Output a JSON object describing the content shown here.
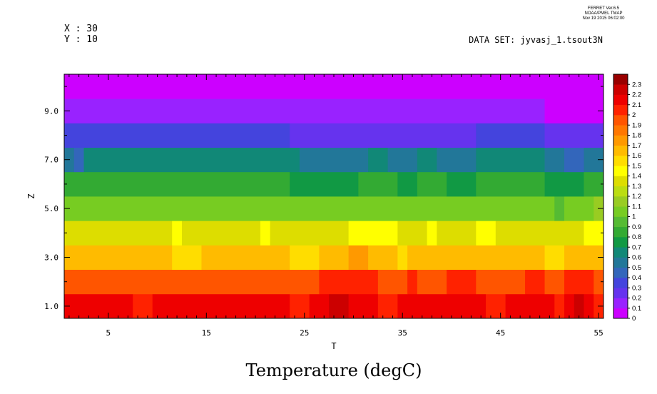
{
  "header": {
    "ferret_lines": [
      "FERRET Ver.6.5",
      "NOAA/PMEL TMAP",
      "Nov 19 2015 06:02:00"
    ],
    "x_label": "X : 30",
    "y_label": "Y : 10",
    "dataset": "DATA SET: jyvasj_1.tsout3N"
  },
  "chart_data": {
    "type": "heatmap",
    "title": "Temperature (degC)",
    "xlabel": "T",
    "ylabel": "Z",
    "xlim": [
      0.5,
      55.5
    ],
    "ylim": [
      0.5,
      10.5
    ],
    "xticks_major": [
      5,
      15,
      25,
      35,
      45,
      55
    ],
    "yticks_major": [
      1.0,
      3.0,
      5.0,
      7.0,
      9.0
    ],
    "ytick_labels": [
      "1.0",
      "3.0",
      "5.0",
      "7.0",
      "9.0"
    ],
    "colorbar": {
      "levels": [
        0,
        0.1,
        0.2,
        0.3,
        0.4,
        0.5,
        0.6,
        0.7,
        0.8,
        0.9,
        1,
        1.1,
        1.2,
        1.3,
        1.4,
        1.5,
        1.6,
        1.7,
        1.8,
        1.9,
        2,
        2.1,
        2.2,
        2.3
      ],
      "labels": [
        "0",
        "0.1",
        "0.2",
        "0.3",
        "0.4",
        "0.5",
        "0.6",
        "0.7",
        "0.8",
        "0.9",
        "1",
        "1.1",
        "1.2",
        "1.3",
        "1.4",
        "1.5",
        "1.6",
        "1.7",
        "1.8",
        "1.9",
        "2",
        "2.1",
        "2.2",
        "2.3"
      ],
      "colors": [
        "#cc00ff",
        "#9922ff",
        "#6633ee",
        "#4444dd",
        "#3366bb",
        "#227799",
        "#118877",
        "#119944",
        "#33aa33",
        "#55bb33",
        "#77cc22",
        "#99cc22",
        "#bbdd11",
        "#dddd00",
        "#ffff00",
        "#ffdd00",
        "#ffbb00",
        "#ff9900",
        "#ff7700",
        "#ff5500",
        "#ff2200",
        "#ee0000",
        "#cc0000",
        "#990000"
      ]
    },
    "rows": [
      {
        "z": 1,
        "segments": [
          [
            1,
            7,
            2.15
          ],
          [
            8,
            9,
            2.05
          ],
          [
            10,
            23,
            2.15
          ],
          [
            24,
            25,
            2.05
          ],
          [
            26,
            27,
            2.15
          ],
          [
            28,
            29,
            2.25
          ],
          [
            30,
            32,
            2.15
          ],
          [
            33,
            34,
            2.05
          ],
          [
            35,
            43,
            2.15
          ],
          [
            44,
            45,
            2.05
          ],
          [
            46,
            50,
            2.15
          ],
          [
            51,
            51,
            2.05
          ],
          [
            52,
            52,
            2.15
          ],
          [
            53,
            53,
            2.25
          ],
          [
            54,
            54,
            2.15
          ],
          [
            55,
            55,
            2.05
          ]
        ]
      },
      {
        "z": 2,
        "segments": [
          [
            1,
            26,
            1.95
          ],
          [
            27,
            32,
            2.05
          ],
          [
            33,
            35,
            1.95
          ],
          [
            36,
            36,
            2.05
          ],
          [
            37,
            39,
            1.95
          ],
          [
            40,
            42,
            2.05
          ],
          [
            43,
            47,
            1.95
          ],
          [
            48,
            49,
            2.05
          ],
          [
            50,
            51,
            1.95
          ],
          [
            52,
            54,
            2.05
          ],
          [
            55,
            55,
            1.95
          ]
        ]
      },
      {
        "z": 3,
        "segments": [
          [
            1,
            11,
            1.65
          ],
          [
            12,
            14,
            1.55
          ],
          [
            15,
            23,
            1.65
          ],
          [
            24,
            26,
            1.55
          ],
          [
            27,
            29,
            1.65
          ],
          [
            30,
            31,
            1.75
          ],
          [
            32,
            34,
            1.65
          ],
          [
            35,
            35,
            1.55
          ],
          [
            36,
            49,
            1.65
          ],
          [
            50,
            51,
            1.55
          ],
          [
            52,
            55,
            1.65
          ]
        ]
      },
      {
        "z": 4,
        "segments": [
          [
            1,
            11,
            1.35
          ],
          [
            12,
            12,
            1.45
          ],
          [
            13,
            20,
            1.35
          ],
          [
            21,
            21,
            1.45
          ],
          [
            22,
            29,
            1.35
          ],
          [
            30,
            34,
            1.45
          ],
          [
            35,
            37,
            1.35
          ],
          [
            38,
            38,
            1.45
          ],
          [
            39,
            42,
            1.35
          ],
          [
            43,
            44,
            1.45
          ],
          [
            45,
            53,
            1.35
          ],
          [
            54,
            55,
            1.45
          ]
        ]
      },
      {
        "z": 5,
        "segments": [
          [
            1,
            50,
            1.05
          ],
          [
            51,
            51,
            0.95
          ],
          [
            52,
            54,
            1.05
          ],
          [
            55,
            55,
            1.15
          ]
        ]
      },
      {
        "z": 6,
        "segments": [
          [
            1,
            23,
            0.85
          ],
          [
            24,
            30,
            0.75
          ],
          [
            31,
            34,
            0.85
          ],
          [
            35,
            36,
            0.75
          ],
          [
            37,
            39,
            0.85
          ],
          [
            40,
            42,
            0.75
          ],
          [
            43,
            49,
            0.85
          ],
          [
            50,
            53,
            0.75
          ],
          [
            54,
            55,
            0.85
          ]
        ]
      },
      {
        "z": 7,
        "segments": [
          [
            1,
            1,
            0.55
          ],
          [
            2,
            2,
            0.45
          ],
          [
            3,
            24,
            0.65
          ],
          [
            25,
            31,
            0.55
          ],
          [
            32,
            33,
            0.65
          ],
          [
            34,
            36,
            0.55
          ],
          [
            37,
            38,
            0.65
          ],
          [
            39,
            42,
            0.55
          ],
          [
            43,
            49,
            0.65
          ],
          [
            50,
            51,
            0.55
          ],
          [
            52,
            53,
            0.45
          ],
          [
            54,
            55,
            0.55
          ]
        ]
      },
      {
        "z": 8,
        "segments": [
          [
            1,
            23,
            0.35
          ],
          [
            24,
            42,
            0.25
          ],
          [
            43,
            49,
            0.35
          ],
          [
            50,
            55,
            0.25
          ]
        ]
      },
      {
        "z": 9,
        "segments": [
          [
            1,
            49,
            0.15
          ],
          [
            50,
            55,
            0.05
          ]
        ]
      },
      {
        "z": 10,
        "segments": [
          [
            1,
            55,
            0.05
          ]
        ]
      }
    ]
  }
}
